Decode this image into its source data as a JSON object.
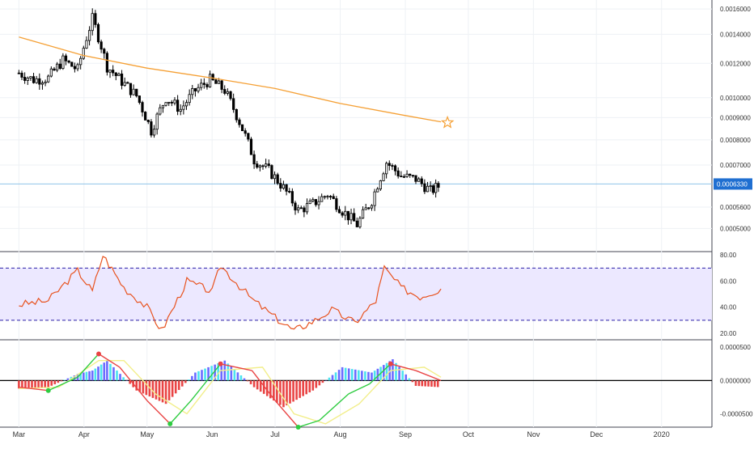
{
  "colors": {
    "candle": "#000000",
    "ma": "#f5a035",
    "rsi": "#e8531f",
    "rsi_band_fill": "#ece8ff",
    "rsi_band_line": "#2a1fa6",
    "price_label_bg": "#1f6fd1",
    "grid": "#eef1f5",
    "hist_pos_strong": "#6b6bff",
    "hist_pos_light": "#4be3f0",
    "hist_neg": "#e94444",
    "osc_fast": "#2ecc40",
    "osc_slow": "#f2ee8a",
    "osc_signal_up": "#2ecc40",
    "osc_signal_down": "#e94444"
  },
  "chart_data": [
    {
      "type": "line",
      "name": "price-pane",
      "ylim": [
        0.00045,
        0.00165
      ],
      "y_scale": "log",
      "y_ticks": [
        {
          "value": 0.0016,
          "label": "0.0016000"
        },
        {
          "value": 0.0014,
          "label": "0.0014000"
        },
        {
          "value": 0.0012,
          "label": "0.0012000"
        },
        {
          "value": 0.001,
          "label": "0.0010000"
        },
        {
          "value": 0.0009,
          "label": "0.0009000"
        },
        {
          "value": 0.0008,
          "label": "0.0008000"
        },
        {
          "value": 0.0007,
          "label": "0.0007000"
        },
        {
          "value": 0.00056,
          "label": "0.0005600"
        },
        {
          "value": 0.0005,
          "label": "0.0005000"
        }
      ],
      "last_price": {
        "value": 0.000633,
        "label": "0.0006330"
      },
      "series": [
        {
          "style": "candles",
          "x": [
            "2019-03-01",
            "2019-03-08",
            "2019-03-15",
            "2019-03-22",
            "2019-03-29",
            "2019-04-05",
            "2019-04-12",
            "2019-04-19",
            "2019-04-26",
            "2019-05-03",
            "2019-05-10",
            "2019-05-17",
            "2019-05-24",
            "2019-05-31",
            "2019-06-07",
            "2019-06-14",
            "2019-06-21",
            "2019-06-28",
            "2019-07-05",
            "2019-07-12",
            "2019-07-19",
            "2019-07-26",
            "2019-08-02",
            "2019-08-09",
            "2019-08-16",
            "2019-08-23",
            "2019-08-30",
            "2019-09-06",
            "2019-09-13",
            "2019-09-18"
          ],
          "values": [
            0.00114,
            0.0011,
            0.00111,
            0.00122,
            0.00116,
            0.00152,
            0.00118,
            0.00109,
            0.00101,
            0.00084,
            0.001,
            0.00094,
            0.00104,
            0.0011,
            0.00104,
            0.00088,
            0.00072,
            0.00068,
            0.00062,
            0.00055,
            0.00057,
            0.0006,
            0.00055,
            0.00051,
            0.00058,
            0.00071,
            0.00066,
            0.00065,
            0.00061,
            0.00063
          ]
        },
        {
          "style": "line",
          "x": [
            "2019-03-01",
            "2019-04-01",
            "2019-05-01",
            "2019-06-01",
            "2019-07-01",
            "2019-08-01",
            "2019-09-01",
            "2019-09-18"
          ],
          "values": [
            0.00138,
            0.00125,
            0.00117,
            0.00111,
            0.00105,
            0.00097,
            0.00091,
            0.00088
          ]
        }
      ]
    },
    {
      "type": "line",
      "name": "rsi-pane",
      "ylim": [
        15,
        82
      ],
      "y_ticks": [
        {
          "value": 80,
          "label": "80.00"
        },
        {
          "value": 60,
          "label": "60.00"
        },
        {
          "value": 40,
          "label": "40.00"
        },
        {
          "value": 20,
          "label": "20.00"
        }
      ],
      "band": [
        30,
        70
      ],
      "series": [
        {
          "x": [
            "2019-03-01",
            "2019-03-15",
            "2019-03-29",
            "2019-04-05",
            "2019-04-10",
            "2019-04-20",
            "2019-05-01",
            "2019-05-08",
            "2019-05-20",
            "2019-06-01",
            "2019-06-05",
            "2019-06-20",
            "2019-07-01",
            "2019-07-10",
            "2019-07-20",
            "2019-07-28",
            "2019-08-08",
            "2019-08-18",
            "2019-08-22",
            "2019-08-30",
            "2019-09-08",
            "2019-09-18"
          ],
          "values": [
            42,
            45,
            68,
            52,
            80,
            55,
            40,
            22,
            60,
            52,
            72,
            46,
            32,
            22,
            30,
            38,
            28,
            45,
            70,
            55,
            48,
            54
          ]
        }
      ]
    },
    {
      "type": "bar",
      "name": "oscillator-pane",
      "ylim": [
        -7e-05,
        6e-05
      ],
      "y_ticks": [
        {
          "value": 5e-05,
          "label": "0.0000500"
        },
        {
          "value": 0.0,
          "label": "0.0000000"
        },
        {
          "value": -5e-05,
          "label": "-0.0000500"
        }
      ],
      "series": [
        {
          "style": "histogram",
          "x": [
            "2019-03-01",
            "2019-03-15",
            "2019-03-29",
            "2019-04-05",
            "2019-04-12",
            "2019-04-26",
            "2019-05-10",
            "2019-05-24",
            "2019-06-07",
            "2019-06-21",
            "2019-07-05",
            "2019-07-19",
            "2019-08-02",
            "2019-08-16",
            "2019-08-26",
            "2019-09-06",
            "2019-09-18"
          ],
          "values": [
            -1.2e-05,
            -1e-05,
            1e-05,
            1.5e-05,
            3e-05,
            -1.5e-05,
            -3.5e-05,
            1.2e-05,
            3e-05,
            -1e-05,
            -4e-05,
            -1.5e-05,
            2e-05,
            1.2e-05,
            3.2e-05,
            -8e-06,
            -1e-05
          ]
        },
        {
          "style": "line",
          "x": [
            "2019-03-01",
            "2019-03-15",
            "2019-03-29",
            "2019-04-08",
            "2019-04-18",
            "2019-05-01",
            "2019-05-12",
            "2019-05-22",
            "2019-06-05",
            "2019-06-20",
            "2019-07-01",
            "2019-07-12",
            "2019-07-22",
            "2019-08-05",
            "2019-08-15",
            "2019-08-25",
            "2019-09-06",
            "2019-09-18"
          ],
          "values": [
            -1e-05,
            -1.5e-05,
            5e-06,
            4e-05,
            2e-05,
            -3e-05,
            -6.5e-05,
            -3e-05,
            2.5e-05,
            1.5e-05,
            -3e-05,
            -7e-05,
            -6e-05,
            -2e-05,
            -5e-06,
            2.5e-05,
            1.5e-05,
            0.0
          ]
        },
        {
          "style": "line",
          "x": [
            "2019-03-01",
            "2019-03-20",
            "2019-04-08",
            "2019-04-20",
            "2019-05-05",
            "2019-05-20",
            "2019-06-05",
            "2019-06-25",
            "2019-07-10",
            "2019-07-25",
            "2019-08-10",
            "2019-08-25",
            "2019-09-10",
            "2019-09-18"
          ],
          "values": [
            -1.2e-05,
            -1e-05,
            3e-05,
            3e-05,
            -2e-05,
            -5e-05,
            1.5e-05,
            2e-05,
            -5e-05,
            -6.5e-05,
            -3.5e-05,
            1.5e-05,
            2e-05,
            5e-06
          ]
        }
      ]
    }
  ],
  "x_axis": {
    "labels": [
      {
        "date": "2019-03-01",
        "label": "Mar"
      },
      {
        "date": "2019-04-01",
        "label": "Apr"
      },
      {
        "date": "2019-05-01",
        "label": "May"
      },
      {
        "date": "2019-06-01",
        "label": "Jun"
      },
      {
        "date": "2019-07-01",
        "label": "Jul"
      },
      {
        "date": "2019-08-01",
        "label": "Aug"
      },
      {
        "date": "2019-09-01",
        "label": "Sep"
      },
      {
        "date": "2019-10-01",
        "label": "Oct"
      },
      {
        "date": "2019-11-01",
        "label": "Nov"
      },
      {
        "date": "2019-12-01",
        "label": "Dec"
      },
      {
        "date": "2020-01-01",
        "label": "2020"
      }
    ]
  }
}
